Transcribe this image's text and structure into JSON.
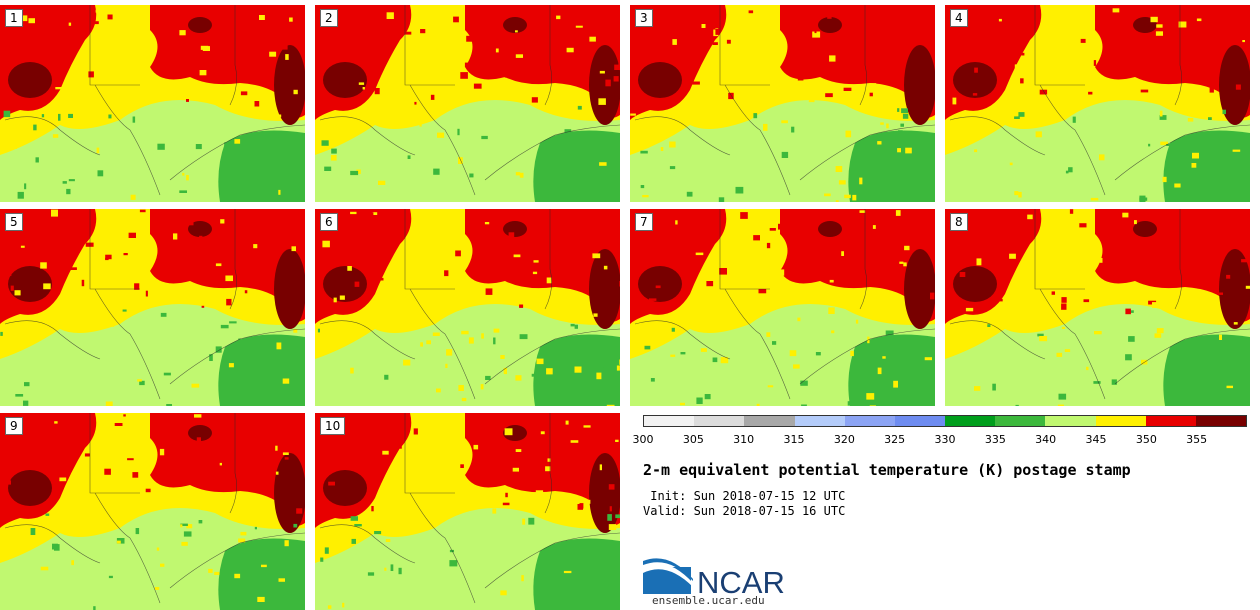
{
  "panels": [
    {
      "label": "1"
    },
    {
      "label": "2"
    },
    {
      "label": "3"
    },
    {
      "label": "4"
    },
    {
      "label": "5"
    },
    {
      "label": "6"
    },
    {
      "label": "7"
    },
    {
      "label": "8"
    },
    {
      "label": "9"
    },
    {
      "label": "10"
    }
  ],
  "colorbar": {
    "colors": [
      "#f2f2f2",
      "#dcdcdc",
      "#a8a8a8",
      "#b4ccfa",
      "#8ca4f4",
      "#6e8cf0",
      "#009e1c",
      "#3cb83c",
      "#c0f870",
      "#fff000",
      "#e80000",
      "#780000"
    ],
    "ticks": [
      "300",
      "305",
      "310",
      "315",
      "320",
      "325",
      "330",
      "335",
      "340",
      "345",
      "350",
      "355"
    ]
  },
  "title": "2-m equivalent potential temperature (K) postage stamp",
  "init": " Init: Sun 2018-07-15 12 UTC",
  "valid": "Valid: Sun 2018-07-15 16 UTC",
  "logo": {
    "text": "NCAR",
    "site": "ensemble.ucar.edu"
  },
  "map_colors": {
    "light_green": "#c0f870",
    "yellow": "#fff000",
    "red": "#e80000",
    "dark_red": "#780000",
    "green": "#3cb83c"
  }
}
